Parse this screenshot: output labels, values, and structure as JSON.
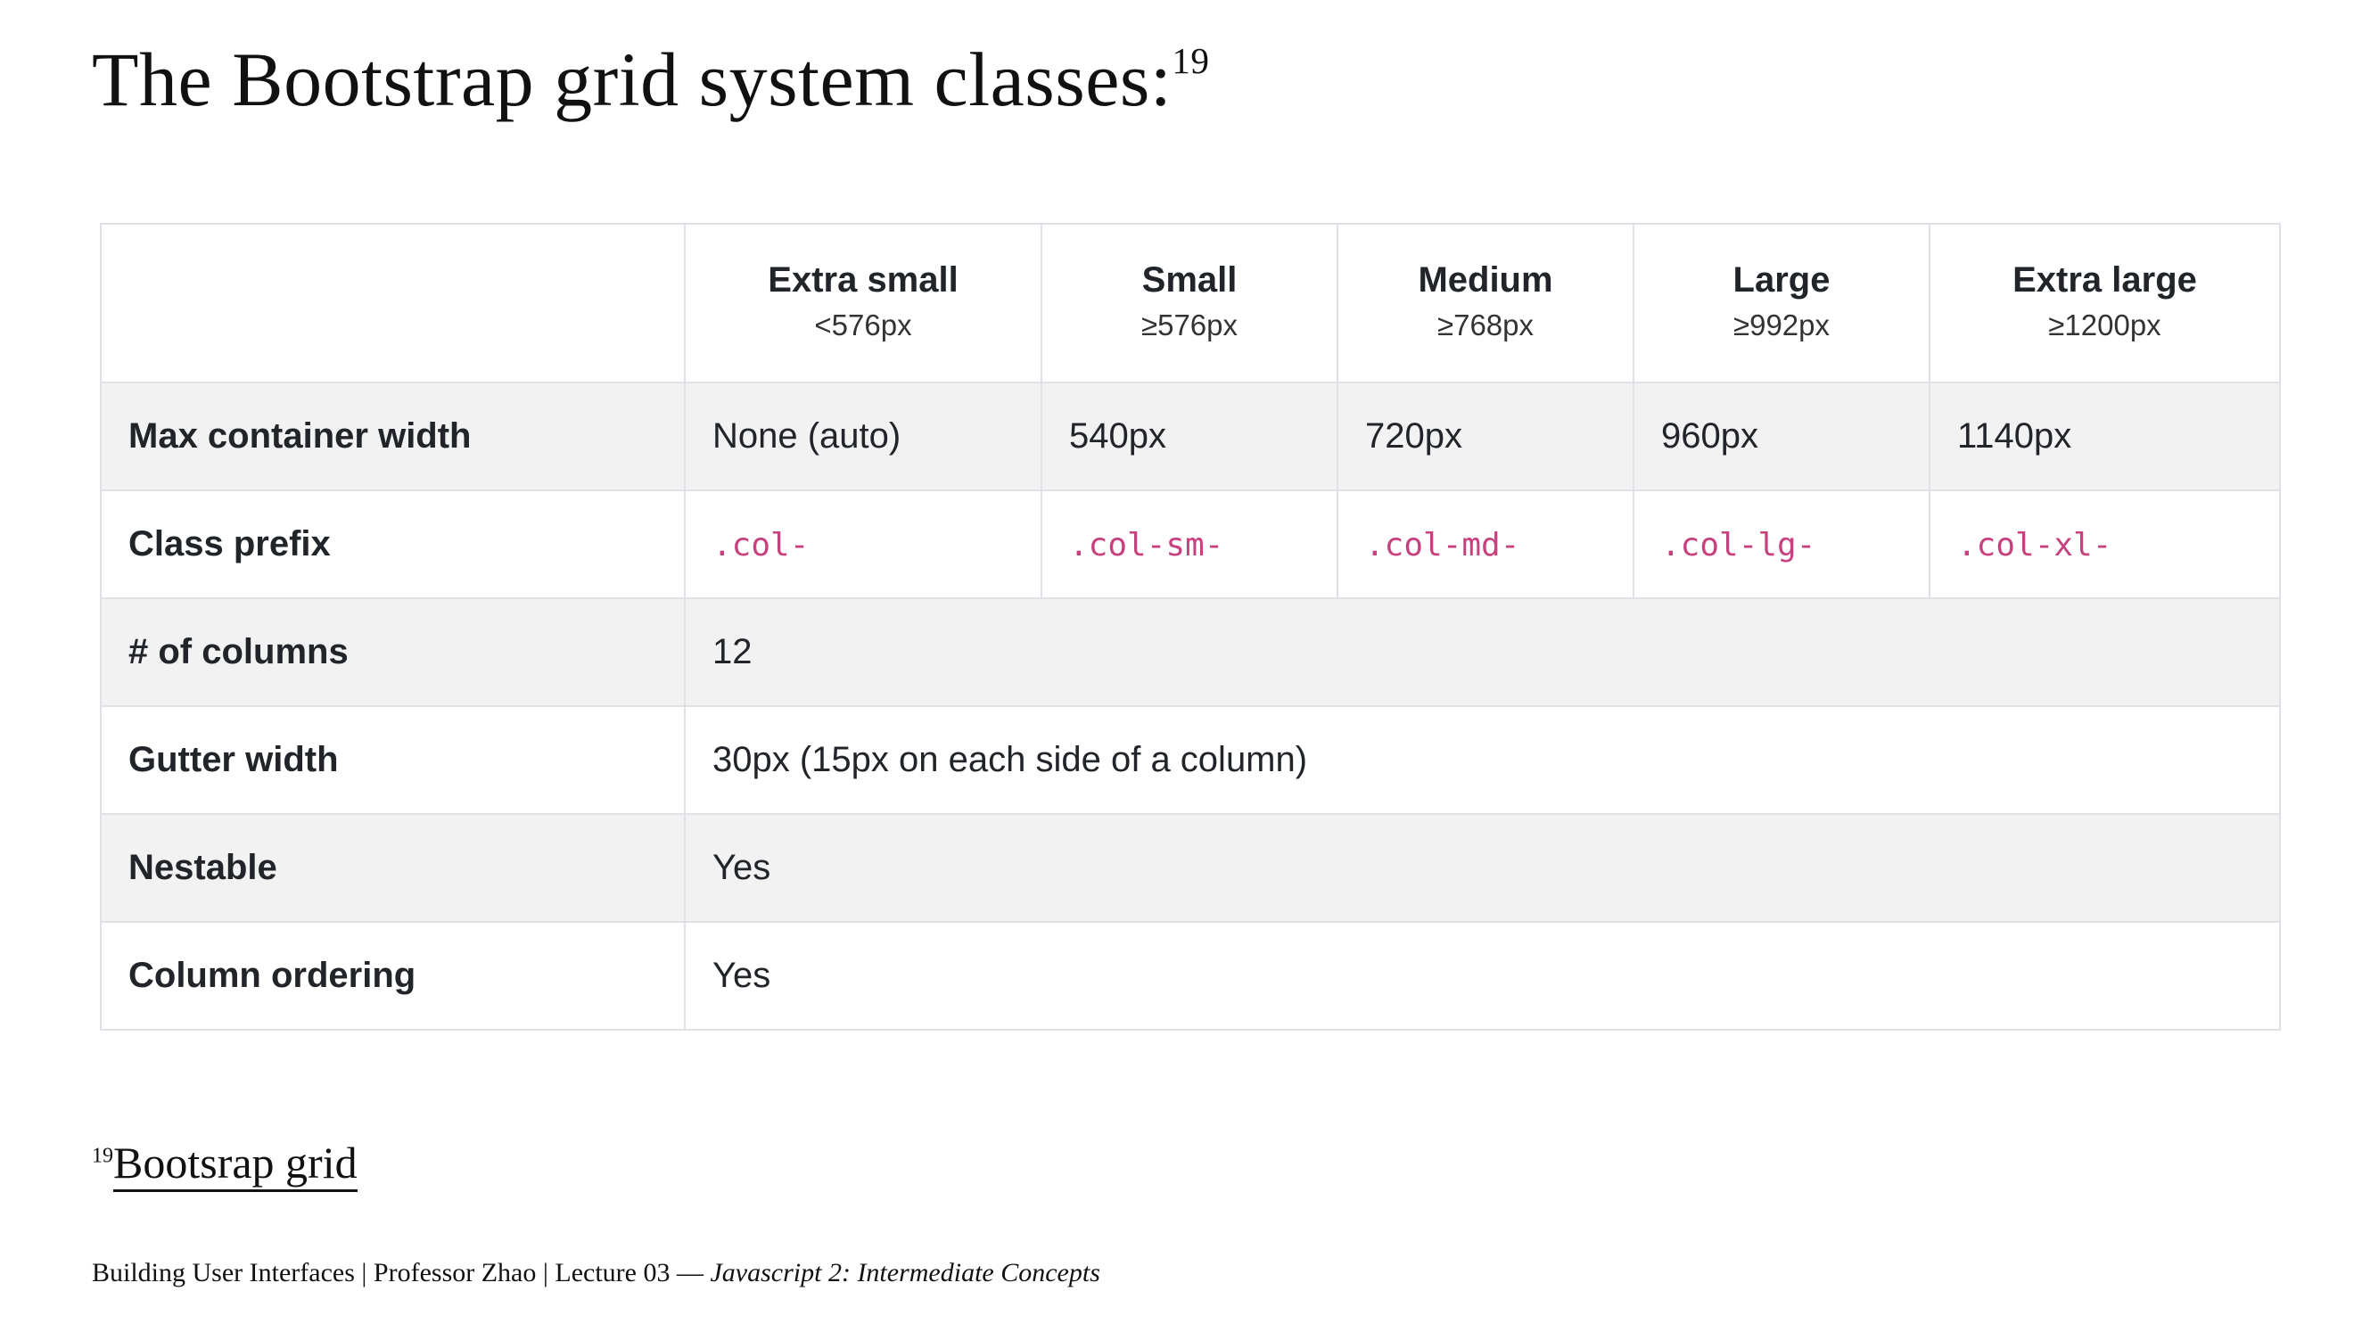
{
  "title": "The Bootstrap grid system classes:",
  "title_footnote_ref": "19",
  "table": {
    "columns": [
      {
        "label": "Extra small",
        "range": "<576px"
      },
      {
        "label": "Small",
        "range": "≥576px"
      },
      {
        "label": "Medium",
        "range": "≥768px"
      },
      {
        "label": "Large",
        "range": "≥992px"
      },
      {
        "label": "Extra large",
        "range": "≥1200px"
      }
    ],
    "rows": {
      "max_container_width": {
        "label": "Max container width",
        "values": [
          "None (auto)",
          "540px",
          "720px",
          "960px",
          "1140px"
        ]
      },
      "class_prefix": {
        "label": "Class prefix",
        "values": [
          ".col-",
          ".col-sm-",
          ".col-md-",
          ".col-lg-",
          ".col-xl-"
        ]
      },
      "num_columns": {
        "label": "# of columns",
        "value": "12"
      },
      "gutter_width": {
        "label": "Gutter width",
        "value": "30px (15px on each side of a column)"
      },
      "nestable": {
        "label": "Nestable",
        "value": "Yes"
      },
      "column_ordering": {
        "label": "Column ordering",
        "value": "Yes"
      }
    }
  },
  "footnote": {
    "number": "19",
    "link_text": "Bootsrap grid"
  },
  "footer": {
    "text": "Building User Interfaces | Professor Zhao | Lecture 03 — ",
    "italic_text": "Javascript 2: Intermediate Concepts"
  },
  "colors": {
    "code": "#c7417e",
    "shaded_row": "#f2f2f2",
    "border": "#dee2e6"
  }
}
